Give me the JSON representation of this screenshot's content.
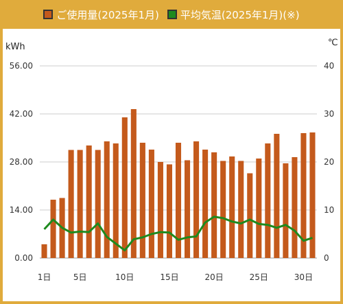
{
  "legend": {
    "usage_label": "ご使用量(2025年1月)",
    "temp_label": "平均気温(2025年1月)(※)"
  },
  "colors": {
    "header_bg": "#e0ab3c",
    "bar": "#c45a1c",
    "line": "#1e8a1e",
    "grid": "#cccccc"
  },
  "chart_data": {
    "type": "bar",
    "title": "",
    "ylabel": "kWh",
    "y2label": "℃",
    "ylim": [
      0,
      56
    ],
    "y2lim": [
      0,
      40
    ],
    "yticks": [
      "0.00",
      "14.00",
      "28.00",
      "42.00",
      "56.00"
    ],
    "y2ticks": [
      "0",
      "10",
      "20",
      "30",
      "40"
    ],
    "xticks": [
      {
        "day": 1,
        "label": "1日"
      },
      {
        "day": 5,
        "label": "5日"
      },
      {
        "day": 10,
        "label": "10日"
      },
      {
        "day": 15,
        "label": "15日"
      },
      {
        "day": 20,
        "label": "20日"
      },
      {
        "day": 25,
        "label": "25日"
      },
      {
        "day": 30,
        "label": "30日"
      }
    ],
    "grid": true,
    "legend_position": "top",
    "days": [
      1,
      2,
      3,
      4,
      5,
      6,
      7,
      8,
      9,
      10,
      11,
      12,
      13,
      14,
      15,
      16,
      17,
      18,
      19,
      20,
      21,
      22,
      23,
      24,
      25,
      26,
      27,
      28,
      29,
      30,
      31
    ],
    "series": [
      {
        "name": "ご使用量(2025年1月)",
        "type": "bar",
        "axis": "left",
        "values": [
          4.0,
          17.0,
          17.5,
          31.5,
          31.5,
          32.8,
          31.5,
          34.0,
          33.4,
          41.0,
          43.4,
          33.6,
          31.6,
          28.0,
          27.3,
          33.6,
          28.5,
          34.0,
          31.6,
          30.8,
          28.3,
          29.6,
          28.3,
          24.7,
          29.0,
          33.4,
          36.2,
          27.6,
          29.4,
          36.4,
          36.6
        ]
      },
      {
        "name": "平均気温(2025年1月)(※)",
        "type": "line",
        "axis": "right",
        "values": [
          6.0,
          8.0,
          6.3,
          5.3,
          5.5,
          5.4,
          7.2,
          4.4,
          3.0,
          1.6,
          3.9,
          4.3,
          5.0,
          5.4,
          5.3,
          3.8,
          4.3,
          4.5,
          7.4,
          8.6,
          8.3,
          7.6,
          7.2,
          8.0,
          7.1,
          6.9,
          6.3,
          6.9,
          5.7,
          3.6,
          4.2
        ]
      }
    ]
  }
}
